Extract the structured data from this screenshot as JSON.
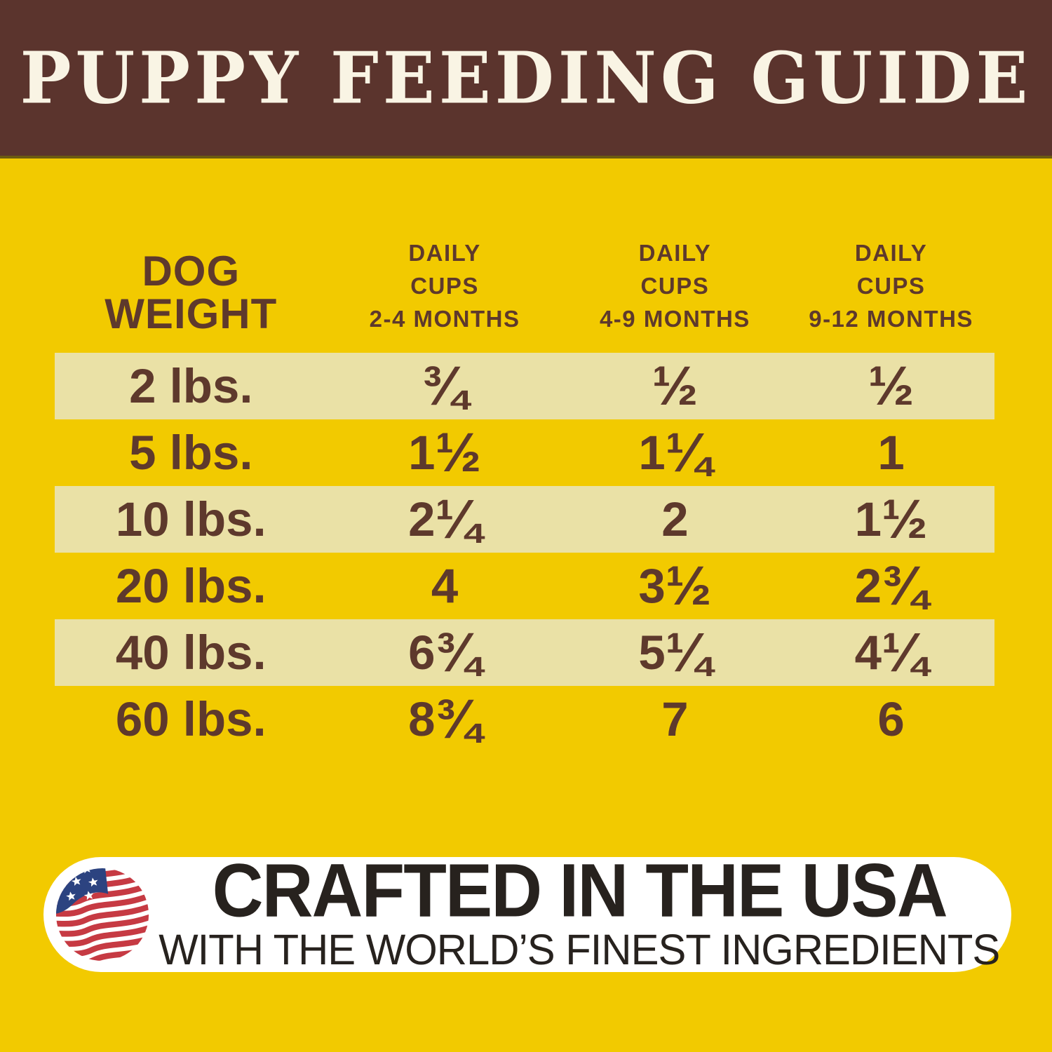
{
  "header": {
    "title": "PUPPY FEEDING GUIDE"
  },
  "table": {
    "columns": [
      "DOG\nWEIGHT",
      "DAILY\nCUPS\n2-4 MONTHS",
      "DAILY\nCUPS\n4-9 MONTHS",
      "DAILY\nCUPS\n9-12 MONTHS"
    ],
    "rows": [
      {
        "weight": "2 lbs.",
        "values": [
          "¾",
          "½",
          "½"
        ],
        "striped": true
      },
      {
        "weight": "5 lbs.",
        "values": [
          "1½",
          "1¼",
          "1"
        ],
        "striped": false
      },
      {
        "weight": "10 lbs.",
        "values": [
          "2¼",
          "2",
          "1½"
        ],
        "striped": true
      },
      {
        "weight": "20 lbs.",
        "values": [
          "4",
          "3½",
          "2¾"
        ],
        "striped": false
      },
      {
        "weight": "40 lbs.",
        "values": [
          "6¾",
          "5¼",
          "4¼"
        ],
        "striped": true
      },
      {
        "weight": "60 lbs.",
        "values": [
          "8¾",
          "7",
          "6"
        ],
        "striped": false
      }
    ]
  },
  "badge": {
    "title": "CRAFTED IN THE USA",
    "subtitle": "WITH THE WORLD’S FINEST INGREDIENTS",
    "flag_icon": "usa-flag"
  },
  "colors": {
    "header_bg": "#5b342d",
    "title_cream": "#f9f4e4",
    "body_bg": "#f2ca00",
    "row_stripe": "#eae1a6",
    "table_text": "#5e392c",
    "badge_bg": "#ffffff",
    "badge_text": "#27221e",
    "flag_red": "#c63a43",
    "flag_blue": "#2c4380",
    "divider_olive": "#6c5a11"
  }
}
